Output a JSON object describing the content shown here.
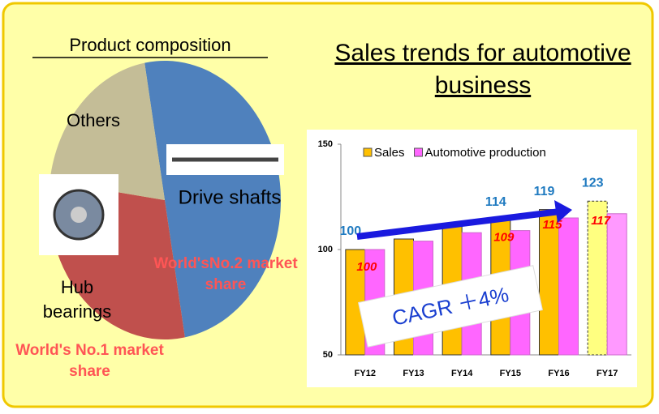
{
  "chart_data": [
    {
      "type": "pie",
      "title": "Product composition",
      "categories": [
        "Drive shafts",
        "Hub bearings",
        "Others"
      ],
      "values": [
        50,
        30,
        20
      ],
      "colors": [
        "#4f81bd",
        "#c0504d",
        "#c4bd97"
      ],
      "annotations": [
        "World'sNo.2 market share",
        "World's No.1 market share"
      ]
    },
    {
      "type": "bar",
      "title": "Sales trends for automotive business",
      "categories": [
        "FY12",
        "FY13",
        "FY14",
        "FY15",
        "FY16",
        "FY17"
      ],
      "series": [
        {
          "name": "Sales",
          "color": "#ffc000",
          "colors": [
            "#ffc000",
            "#ffc000",
            "#ffc000",
            "#ffc000",
            "#ffc000",
            "#ffff80"
          ],
          "values": [
            100,
            105,
            112,
            114,
            119,
            123
          ],
          "value_labels": [
            "100",
            null,
            null,
            "114",
            "119",
            "123"
          ]
        },
        {
          "name": "Automotive production",
          "color": "#ff66ff",
          "colors": [
            "#ff66ff",
            "#ff66ff",
            "#ff66ff",
            "#ff66ff",
            "#ff66ff",
            "#ff99ff"
          ],
          "values": [
            100,
            104,
            108,
            109,
            115,
            117
          ],
          "value_labels": [
            "100",
            null,
            null,
            "109",
            "115",
            "117"
          ]
        }
      ],
      "ylim": [
        50,
        150
      ],
      "yticks": [
        50,
        100,
        150
      ],
      "annotation": "CAGR ＋4%"
    }
  ]
}
